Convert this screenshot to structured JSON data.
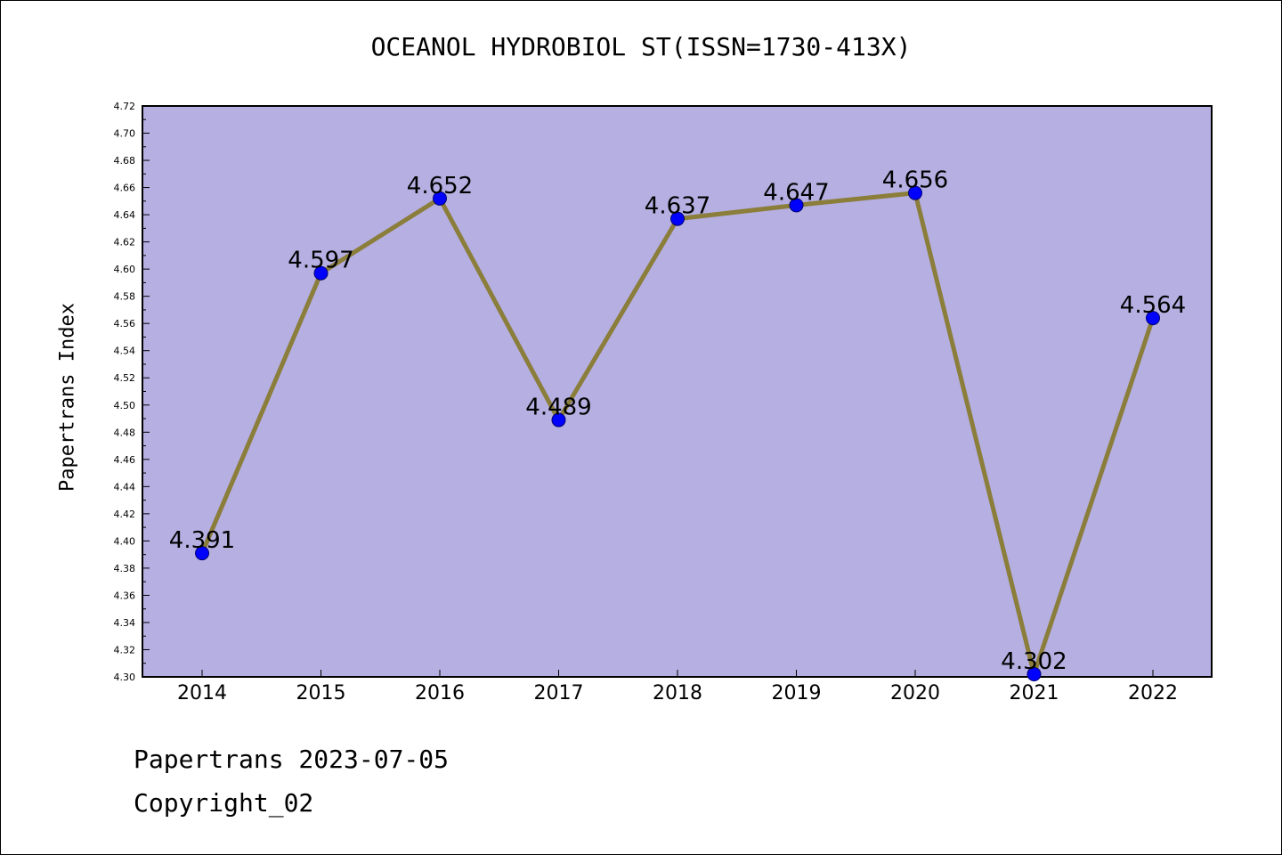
{
  "title": "OCEANOL HYDROBIOL ST(ISSN=1730-413X)",
  "footer": {
    "date_text": "Papertrans 2023-07-05",
    "copyright_text": "Copyright_02"
  },
  "colors": {
    "plot_background": "#b5afe2",
    "line": "#8b7d3a",
    "marker": "#0000ff"
  },
  "chart_data": {
    "type": "line",
    "title": "OCEANOL HYDROBIOL ST(ISSN=1730-413X)",
    "xlabel": "",
    "ylabel": "Papertrans Index",
    "categories": [
      "2014",
      "2015",
      "2016",
      "2017",
      "2018",
      "2019",
      "2020",
      "2021",
      "2022"
    ],
    "series": [
      {
        "values": [
          4.391,
          4.597,
          4.652,
          4.489,
          4.637,
          4.647,
          4.656,
          4.302,
          4.564
        ],
        "labels": [
          "4.391",
          "4.597",
          "4.652",
          "4.489",
          "4.637",
          "4.647",
          "4.656",
          "4.302",
          "4.564"
        ]
      }
    ],
    "ylim": [
      4.3,
      4.72
    ],
    "yticks": [
      "4.30",
      "4.32",
      "4.34",
      "4.36",
      "4.38",
      "4.40",
      "4.42",
      "4.44",
      "4.46",
      "4.48",
      "4.50",
      "4.52",
      "4.54",
      "4.56",
      "4.58",
      "4.60",
      "4.62",
      "4.64",
      "4.66",
      "4.68",
      "4.70",
      "4.72"
    ],
    "grid": false,
    "legend": "none"
  }
}
